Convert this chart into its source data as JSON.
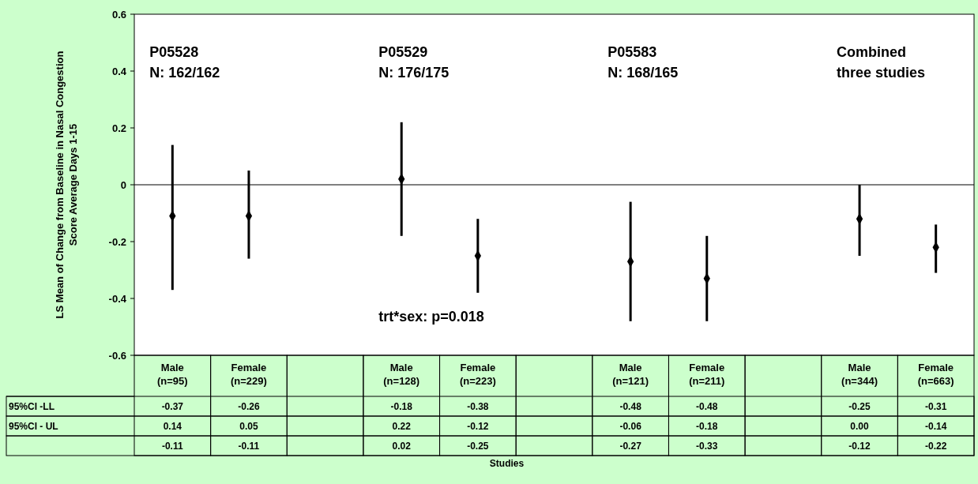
{
  "chart_data": {
    "type": "scatter",
    "ylabel": "LS Mean of Change from Baseline in Nasal Congestion Score Average Days 1-15",
    "categories": [
      "Male (n=95)",
      "Female (n=229)",
      null,
      "Male (n=128)",
      "Female (n=223)",
      null,
      "Male (n=121)",
      "Female (n=211)",
      null,
      "Male (n=344)",
      "Female (n=663)"
    ],
    "series": [
      {
        "color": "#000000",
        "values": [
          -0.11,
          -0.11,
          null,
          0.02,
          -0.25,
          null,
          -0.27,
          -0.33,
          null,
          -0.12,
          -0.22
        ],
        "errors": [
          [
            -0.37,
            0.14
          ],
          [
            -0.26,
            0.05
          ],
          null,
          [
            -0.18,
            0.22
          ],
          [
            -0.38,
            -0.12
          ],
          null,
          [
            -0.48,
            -0.06
          ],
          [
            -0.48,
            -0.18
          ],
          null,
          [
            -0.25,
            0.0
          ],
          [
            -0.31,
            -0.14
          ]
        ],
        "value_labels": [
          "-0.11",
          "-0.11",
          null,
          "0.02",
          "-0.25",
          null,
          "-0.27",
          "-0.33",
          null,
          "-0.12",
          "-0.22"
        ]
      }
    ],
    "marker": "diamond",
    "ylim": [
      -0.6,
      0.6
    ],
    "yticks": [
      -0.6,
      -0.4,
      -0.2,
      0,
      0.2,
      0.4,
      0.6
    ],
    "grid": false,
    "ref_lines": [
      {
        "axis": "y",
        "value": 0,
        "color": "#000000"
      }
    ],
    "annotations": [
      "P05528\nN: 162/162",
      "P05529\nN: 176/175",
      "P05583\nN: 168/165",
      "Combined\nthree studies",
      "trt*sex: p=0.018",
      "95%CI -LL",
      "95%CI - UL",
      "Studies",
      "-0.37",
      "-0.26",
      "-0.18",
      "-0.38",
      "-0.48",
      "-0.48",
      "-0.25",
      "-0.31",
      "0.14",
      "0.05",
      "0.22",
      "-0.12",
      "-0.06",
      "-0.18",
      "0.00",
      "-0.14"
    ]
  }
}
